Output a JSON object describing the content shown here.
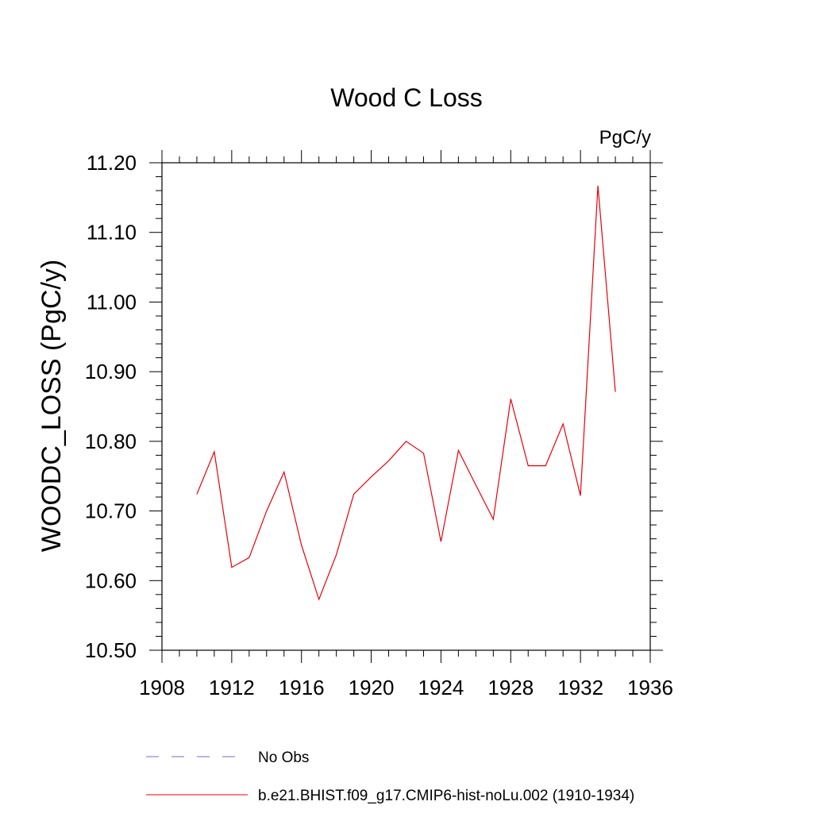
{
  "chart_data": {
    "type": "line",
    "title": "Wood C Loss",
    "units_label": "PgC/y",
    "ylabel": "WOODC_LOSS  (PgC/y)",
    "xlabel": "",
    "xlim": [
      1908,
      1936
    ],
    "ylim": [
      10.5,
      11.2
    ],
    "x_ticks": [
      1908,
      1912,
      1916,
      1920,
      1924,
      1928,
      1932,
      1936
    ],
    "y_ticks": [
      "10.50",
      "10.60",
      "10.70",
      "10.80",
      "10.90",
      "11.00",
      "11.10",
      "11.20"
    ],
    "legend_position": "bottom",
    "series": [
      {
        "name": "b.e21.BHIST.f09_g17.CMIP6-hist-noLu.002 (1910-1934)",
        "color": "#e8000b",
        "style": "solid",
        "x": [
          1910,
          1911,
          1912,
          1913,
          1914,
          1915,
          1916,
          1917,
          1918,
          1919,
          1920,
          1921,
          1922,
          1923,
          1924,
          1925,
          1926,
          1927,
          1928,
          1929,
          1930,
          1931,
          1932,
          1933,
          1934
        ],
        "y": [
          10.724,
          10.785,
          10.619,
          10.633,
          10.7,
          10.756,
          10.651,
          10.573,
          10.637,
          10.724,
          10.749,
          10.772,
          10.8,
          10.783,
          10.656,
          10.787,
          10.737,
          10.688,
          10.861,
          10.765,
          10.765,
          10.825,
          10.722,
          11.167,
          10.871
        ]
      }
    ],
    "legend": [
      {
        "label": "No Obs",
        "color": "#7b68b8",
        "style": "dashed"
      },
      {
        "label": "b.e21.BHIST.f09_g17.CMIP6-hist-noLu.002 (1910-1934)",
        "color": "#e8000b",
        "style": "solid"
      }
    ]
  }
}
